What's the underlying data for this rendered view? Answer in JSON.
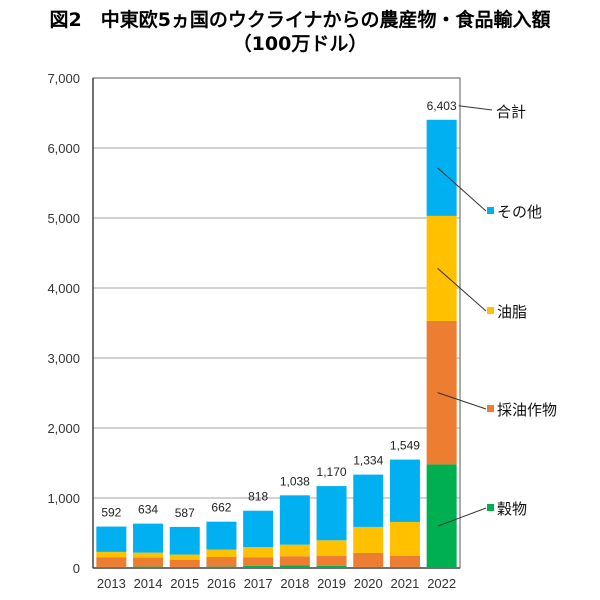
{
  "chart_data": {
    "type": "bar",
    "stacked": true,
    "title": "図2　中東欧5ヵ国のウクライナからの農産物・食品輸入額",
    "subtitle": "（100万ドル）",
    "xlabel": "",
    "ylabel": "",
    "ylim": [
      0,
      7000
    ],
    "yticks": [
      0,
      1000,
      2000,
      3000,
      4000,
      5000,
      6000,
      7000
    ],
    "ytick_labels": [
      "0",
      "1,000",
      "2,000",
      "3,000",
      "4,000",
      "5,000",
      "6,000",
      "7,000"
    ],
    "grid": true,
    "categories": [
      "2013",
      "2014",
      "2015",
      "2016",
      "2017",
      "2018",
      "2019",
      "2020",
      "2021",
      "2022"
    ],
    "series": [
      {
        "name": "穀物",
        "color": "#00B050",
        "values": [
          15,
          20,
          15,
          20,
          30,
          40,
          30,
          15,
          15,
          1480
        ]
      },
      {
        "name": "採油作物",
        "color": "#ED7D31",
        "values": [
          140,
          129,
          100,
          137,
          120,
          127,
          141,
          200,
          157,
          2050
        ]
      },
      {
        "name": "油脂",
        "color": "#FFC000",
        "values": [
          75,
          71,
          77,
          106,
          150,
          167,
          225,
          372,
          486,
          1500
        ]
      },
      {
        "name": "その他",
        "color": "#00B0F0",
        "values": [
          362,
          414,
          395,
          399,
          518,
          704,
          774,
          747,
          891,
          1373
        ]
      }
    ],
    "totals": [
      592,
      634,
      587,
      662,
      818,
      1038,
      1170,
      1334,
      1549,
      6403
    ],
    "total_labels": [
      "592",
      "634",
      "587",
      "662",
      "818",
      "1,038",
      "1,170",
      "1,334",
      "1,549",
      "6,403"
    ],
    "total_legend": "合計",
    "legend": "right (callouts on 2022 bar)"
  }
}
